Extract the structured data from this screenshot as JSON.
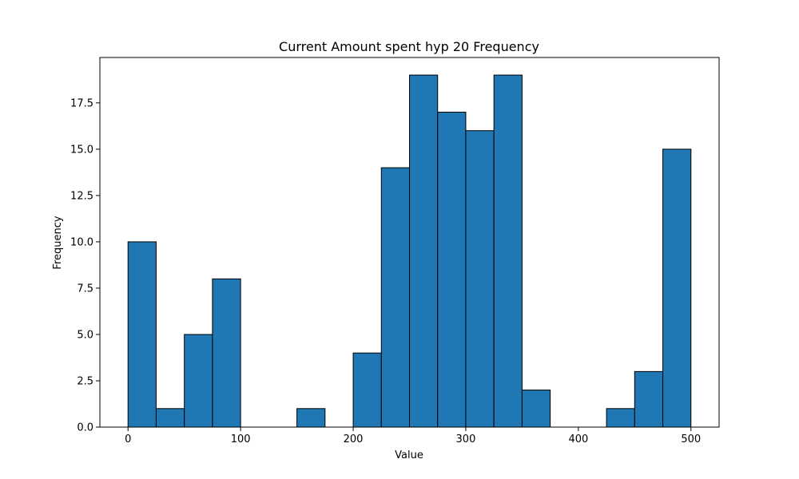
{
  "chart_data": {
    "type": "bar",
    "title": "Current Amount spent hyp 20 Frequency",
    "xlabel": "Value",
    "ylabel": "Frequency",
    "bin_edges": [
      0,
      25,
      50,
      75,
      100,
      125,
      150,
      175,
      200,
      225,
      250,
      275,
      300,
      325,
      350,
      375,
      400,
      425,
      450,
      475,
      500
    ],
    "values": [
      10,
      1,
      5,
      8,
      0,
      0,
      1,
      0,
      4,
      14,
      19,
      17,
      16,
      19,
      2,
      0,
      0,
      1,
      3,
      15
    ],
    "xlim": [
      -25,
      525
    ],
    "ylim": [
      0,
      19.95
    ],
    "xticks": [
      0,
      100,
      200,
      300,
      400,
      500
    ],
    "xtick_labels": [
      "0",
      "100",
      "200",
      "300",
      "400",
      "500"
    ],
    "yticks": [
      0,
      2.5,
      5,
      7.5,
      10,
      12.5,
      15,
      17.5
    ],
    "ytick_labels": [
      "0.0",
      "2.5",
      "5.0",
      "7.5",
      "10.0",
      "12.5",
      "15.0",
      "17.5"
    ],
    "grid": false,
    "colors": {
      "bar_fill": "#1f77b4",
      "bar_edge": "#000000"
    }
  }
}
